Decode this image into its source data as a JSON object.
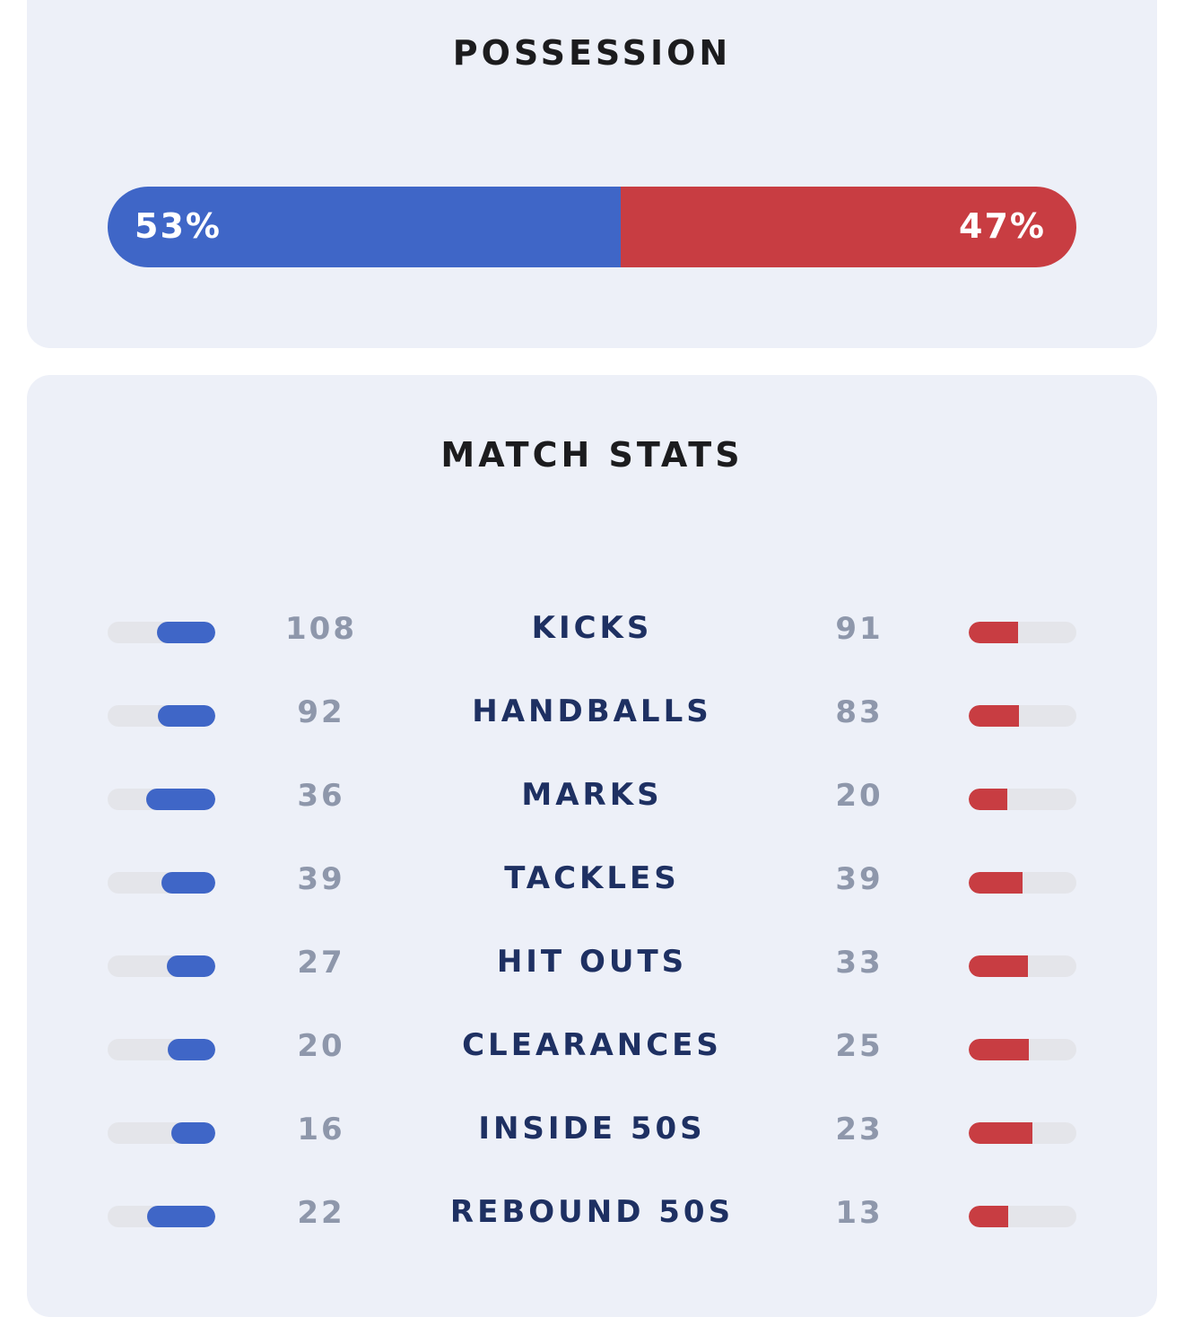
{
  "possession": {
    "title": "POSSESSION",
    "home_pct": 53,
    "away_pct": 47,
    "home_label": "53%",
    "away_label": "47%"
  },
  "match_stats": {
    "title": "MATCH STATS",
    "rows": [
      {
        "label": "KICKS",
        "home": "108",
        "away": "91",
        "home_fill": 0.54,
        "away_fill": 0.46
      },
      {
        "label": "HANDBALLS",
        "home": "92",
        "away": "83",
        "home_fill": 0.53,
        "away_fill": 0.47
      },
      {
        "label": "MARKS",
        "home": "36",
        "away": "20",
        "home_fill": 0.64,
        "away_fill": 0.36
      },
      {
        "label": "TACKLES",
        "home": "39",
        "away": "39",
        "home_fill": 0.5,
        "away_fill": 0.5
      },
      {
        "label": "HIT OUTS",
        "home": "27",
        "away": "33",
        "home_fill": 0.45,
        "away_fill": 0.55
      },
      {
        "label": "CLEARANCES",
        "home": "20",
        "away": "25",
        "home_fill": 0.44,
        "away_fill": 0.56
      },
      {
        "label": "INSIDE 50S",
        "home": "16",
        "away": "23",
        "home_fill": 0.41,
        "away_fill": 0.59
      },
      {
        "label": "REBOUND 50S",
        "home": "22",
        "away": "13",
        "home_fill": 0.63,
        "away_fill": 0.37
      }
    ]
  },
  "colors": {
    "home": "#3f66c7",
    "away": "#c83d42",
    "card_bg": "#edf0f8",
    "track": "#e4e5ea"
  }
}
